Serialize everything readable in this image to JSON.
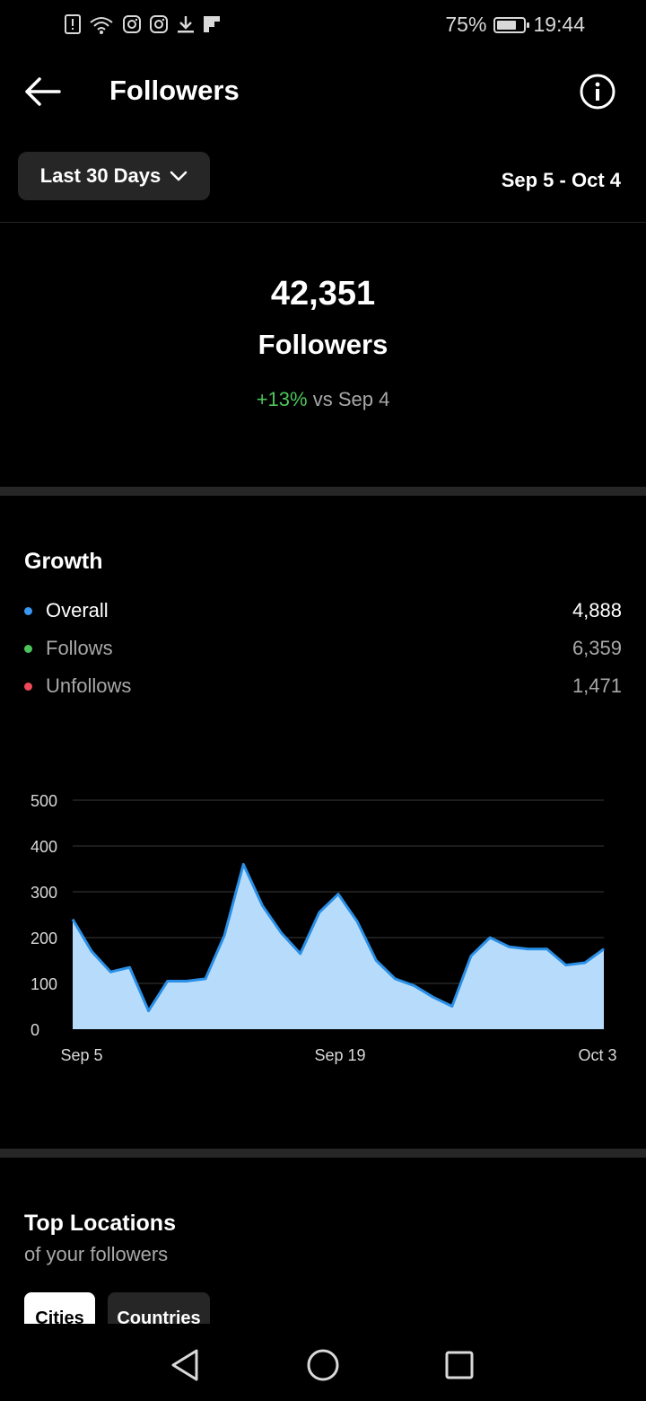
{
  "status_bar": {
    "battery_percent": "75%",
    "time": "19:44",
    "battery_level": 0.75,
    "notification_icons": [
      "alert-icon",
      "wifi-icon",
      "instagram-icon",
      "instagram-icon",
      "download-icon",
      "flipboard-icon"
    ]
  },
  "header": {
    "title": "Followers"
  },
  "filter": {
    "range_label": "Last 30 Days",
    "date_range": "Sep 5 - Oct 4"
  },
  "summary": {
    "count": "42,351",
    "label": "Followers",
    "change": "+13%",
    "compare": "vs Sep 4"
  },
  "growth": {
    "title": "Growth",
    "legend": [
      {
        "label": "Overall",
        "value": "4,888",
        "color": "#3897f0"
      },
      {
        "label": "Follows",
        "value": "6,359",
        "color": "#4bc55b"
      },
      {
        "label": "Unfollows",
        "value": "1,471",
        "color": "#ed4956"
      }
    ]
  },
  "chart_data": {
    "type": "area",
    "x_tick_labels": [
      "Sep 5",
      "Sep 19",
      "Oct 3"
    ],
    "y_tick_labels": [
      "500",
      "400",
      "300",
      "200",
      "100",
      "0"
    ],
    "ylim": [
      0,
      500
    ],
    "grid": true,
    "series": [
      {
        "values": [
          240,
          170,
          125,
          135,
          40,
          105,
          105,
          110,
          205,
          360,
          270,
          210,
          165,
          255,
          295,
          235,
          150,
          110,
          95,
          70,
          50,
          160,
          200,
          180,
          175,
          175,
          140,
          145,
          175
        ]
      }
    ],
    "colors": {
      "line": "#2a8fe6",
      "fill": "#b7dcfb",
      "grid": "#3a3a3a"
    }
  },
  "locations": {
    "title": "Top Locations",
    "subtitle": "of your followers",
    "tabs": [
      "Cities",
      "Countries"
    ]
  }
}
